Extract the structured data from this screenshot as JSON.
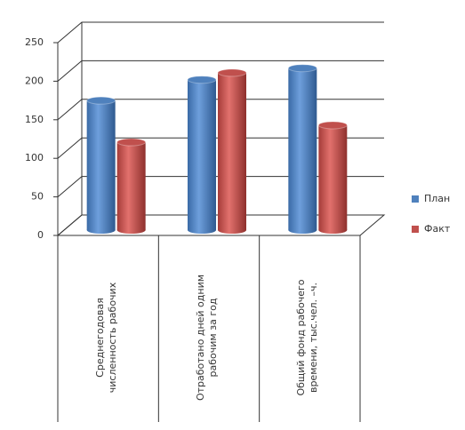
{
  "chart_data": {
    "type": "bar",
    "categories": [
      "Среднегодовая численность рабочих",
      "Отработано дней одним рабочим за год",
      "Общий фонд рабочего времени, тыс.чел. –ч."
    ],
    "series": [
      {
        "name": "План",
        "color": "#4f81bd",
        "values": [
          168,
          195,
          210
        ]
      },
      {
        "name": "Факт",
        "color": "#c0504d",
        "values": [
          114,
          204,
          136
        ]
      }
    ],
    "ylim": [
      0,
      250
    ],
    "yticks": [
      0,
      50,
      100,
      150,
      200,
      250
    ],
    "grid": true,
    "legend": "right"
  }
}
